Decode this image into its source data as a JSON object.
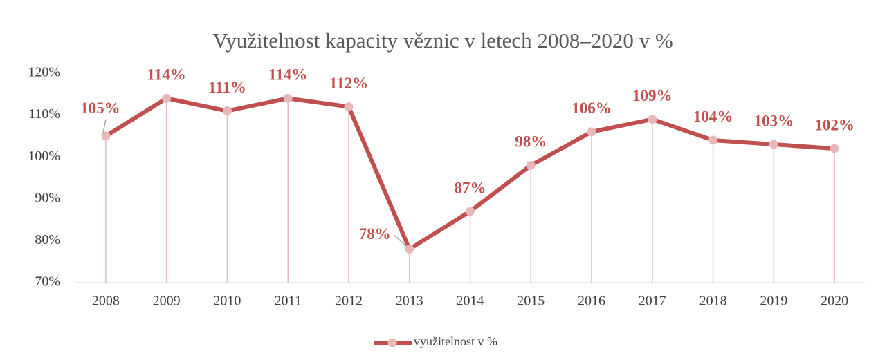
{
  "chart_data": {
    "type": "line",
    "title": "Využitelnost kapacity věznic v letech 2008–2020 v %",
    "categories": [
      "2008",
      "2009",
      "2010",
      "2011",
      "2012",
      "2013",
      "2014",
      "2015",
      "2016",
      "2017",
      "2018",
      "2019",
      "2020"
    ],
    "series": [
      {
        "name": "využitelnost v %",
        "color": "#c0504d",
        "marker_color": "#e6b9b8",
        "values": [
          105,
          114,
          111,
          114,
          112,
          78,
          87,
          98,
          106,
          109,
          104,
          103,
          102
        ],
        "value_labels": [
          "105%",
          "114%",
          "111%",
          "114%",
          "112%",
          "78%",
          "87%",
          "98%",
          "106%",
          "109%",
          "104%",
          "103%",
          "102%"
        ]
      }
    ],
    "ylim": [
      70,
      120
    ],
    "yticks": [
      {
        "value": 70,
        "label": "70%"
      },
      {
        "value": 80,
        "label": "80%"
      },
      {
        "value": 90,
        "label": "90%"
      },
      {
        "value": 100,
        "label": "100%"
      },
      {
        "value": 110,
        "label": "110%"
      },
      {
        "value": 120,
        "label": "120%"
      }
    ],
    "grid": false,
    "drop_lines": true,
    "legend": "bottom"
  }
}
